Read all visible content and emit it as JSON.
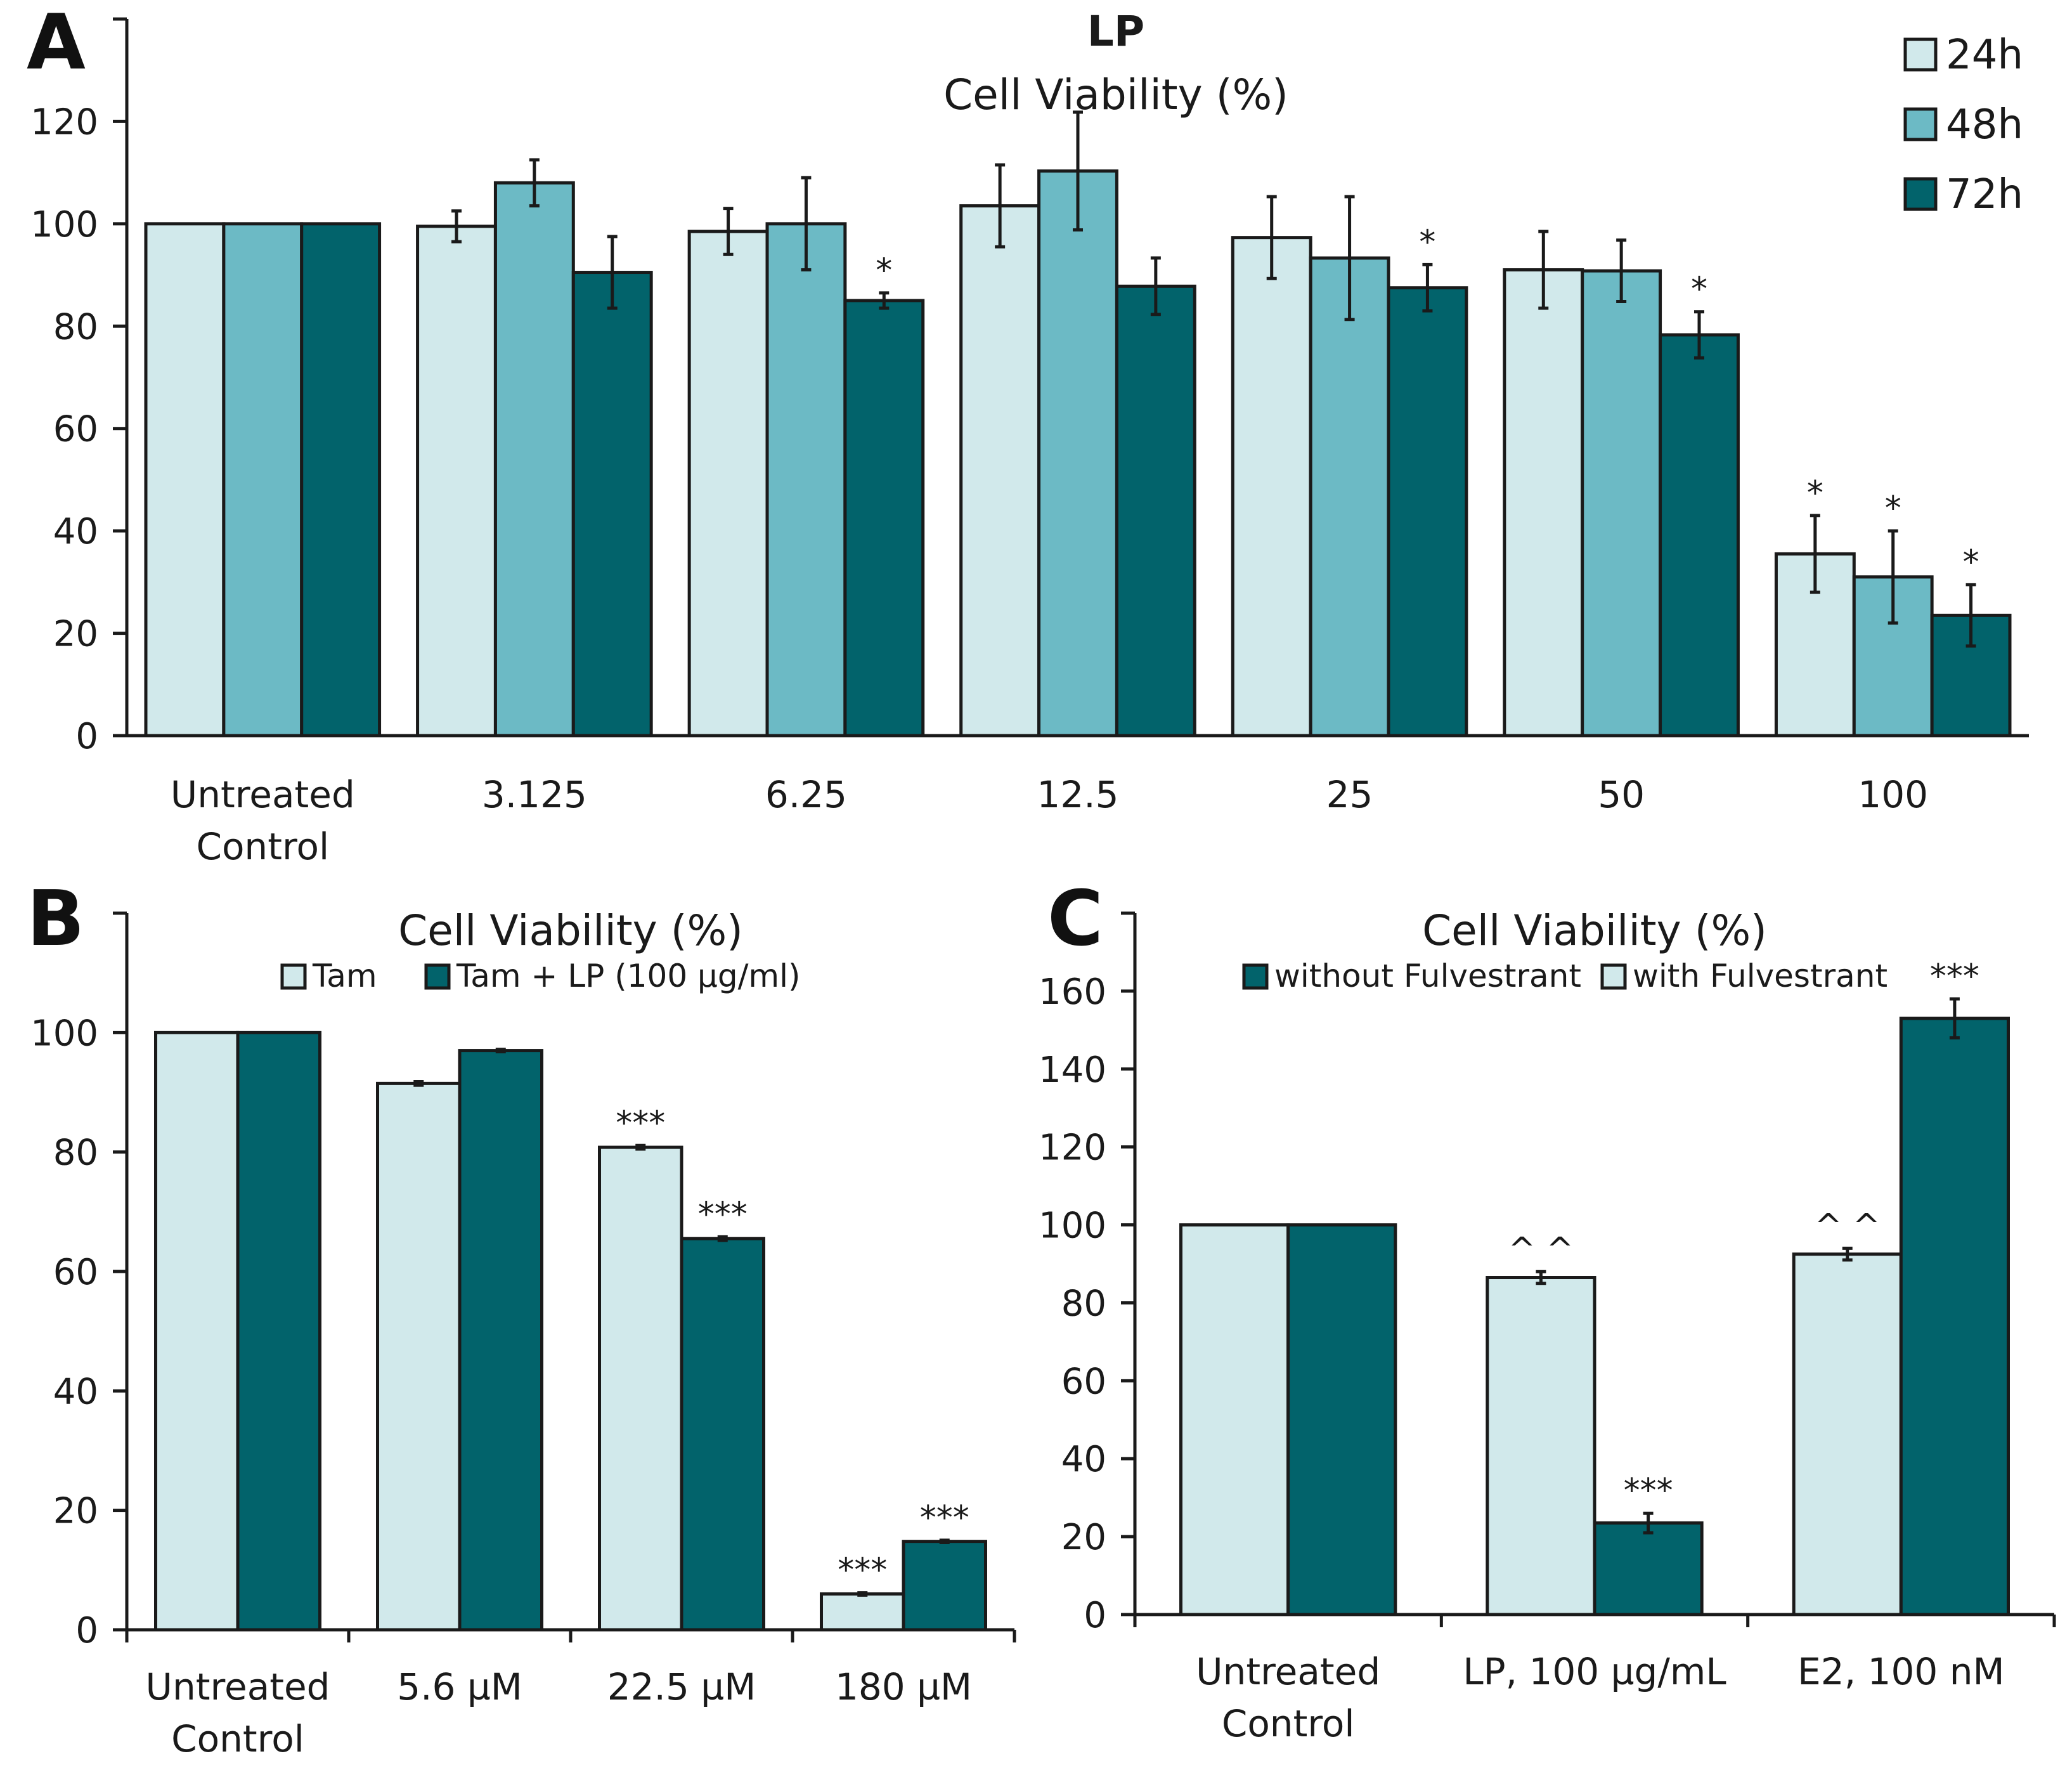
{
  "chart_data": [
    {
      "panel": "A",
      "type": "bar",
      "title": "LP",
      "subtitle": "Cell Viability (%)",
      "categories": [
        "Untreated|Control",
        "3.125",
        "6.25",
        "12.5",
        "25",
        "50",
        "100"
      ],
      "series": [
        {
          "name": "24h",
          "color": "#d1e9eb",
          "values": [
            100,
            99.5,
            98.5,
            103.5,
            97.3,
            91,
            35.5
          ],
          "errors": [
            0,
            3,
            4.5,
            8,
            8,
            7.5,
            7.5
          ]
        },
        {
          "name": "48h",
          "color": "#6cbac5",
          "values": [
            100,
            108,
            100,
            110.3,
            93.3,
            90.8,
            31
          ],
          "errors": [
            0,
            4.5,
            9,
            11.5,
            12,
            6,
            9
          ]
        },
        {
          "name": "72h",
          "color": "#02636b",
          "values": [
            100,
            90.5,
            85,
            87.8,
            87.5,
            78.3,
            23.5
          ],
          "errors": [
            0,
            7,
            1.5,
            5.5,
            4.5,
            4.5,
            6
          ]
        }
      ],
      "significance": [
        {
          "series": 2,
          "cat": 2,
          "label": "*"
        },
        {
          "series": 2,
          "cat": 4,
          "label": "*"
        },
        {
          "series": 2,
          "cat": 5,
          "label": "*"
        },
        {
          "series": 0,
          "cat": 6,
          "label": "*"
        },
        {
          "series": 1,
          "cat": 6,
          "label": "*"
        },
        {
          "series": 2,
          "cat": 6,
          "label": "*"
        }
      ],
      "yticks": [
        0,
        20,
        40,
        60,
        80,
        100,
        120
      ],
      "ylim": [
        0,
        140
      ],
      "xlabel": "",
      "ylabel": "",
      "legend_position": "top-right"
    },
    {
      "panel": "B",
      "type": "bar",
      "title": "Cell Viability (%)",
      "categories": [
        "Untreated|Control",
        "5.6 µM",
        "22.5 µM",
        "180 µM"
      ],
      "series": [
        {
          "name": "Tam",
          "color": "#d1e9eb",
          "values": [
            100,
            91.5,
            80.8,
            6
          ],
          "errors": [
            0,
            0.3,
            0.3,
            0.2
          ]
        },
        {
          "name": "Tam + LP (100 µg/ml)",
          "color": "#02636b",
          "values": [
            100,
            97,
            65.5,
            14.8
          ],
          "errors": [
            0,
            0.2,
            0.3,
            0.2
          ]
        }
      ],
      "significance": [
        {
          "series": 0,
          "cat": 2,
          "label": "***"
        },
        {
          "series": 1,
          "cat": 2,
          "label": "***"
        },
        {
          "series": 0,
          "cat": 3,
          "label": "***"
        },
        {
          "series": 1,
          "cat": 3,
          "label": "***"
        }
      ],
      "yticks": [
        0,
        20,
        40,
        60,
        80,
        100
      ],
      "ylim": [
        0,
        120
      ],
      "xlabel": "",
      "ylabel": "",
      "legend_position": "top"
    },
    {
      "panel": "C",
      "type": "bar",
      "title": "Cell Viability (%)",
      "categories": [
        "Untreated|Control",
        "LP, 100 µg/mL",
        "E2, 100 nM"
      ],
      "series": [
        {
          "name": "with Fulvestrant",
          "color": "#d1e9eb",
          "values": [
            100,
            86.5,
            92.5
          ],
          "errors": [
            0,
            1.5,
            1.5
          ]
        },
        {
          "name": "without Fulvestrant",
          "color": "#02636b",
          "values": [
            100,
            23.5,
            153
          ],
          "errors": [
            0,
            2.5,
            5
          ]
        }
      ],
      "legend_order": [
        1,
        0
      ],
      "significance": [
        {
          "series": 0,
          "cat": 1,
          "label": "^ ^"
        },
        {
          "series": 1,
          "cat": 1,
          "label": "***"
        },
        {
          "series": 0,
          "cat": 2,
          "label": "^ ^"
        },
        {
          "series": 1,
          "cat": 2,
          "label": "***"
        }
      ],
      "yticks": [
        0,
        20,
        40,
        60,
        80,
        100,
        120,
        140,
        160
      ],
      "ylim": [
        0,
        180
      ],
      "xlabel": "",
      "ylabel": "",
      "legend_position": "top"
    }
  ]
}
